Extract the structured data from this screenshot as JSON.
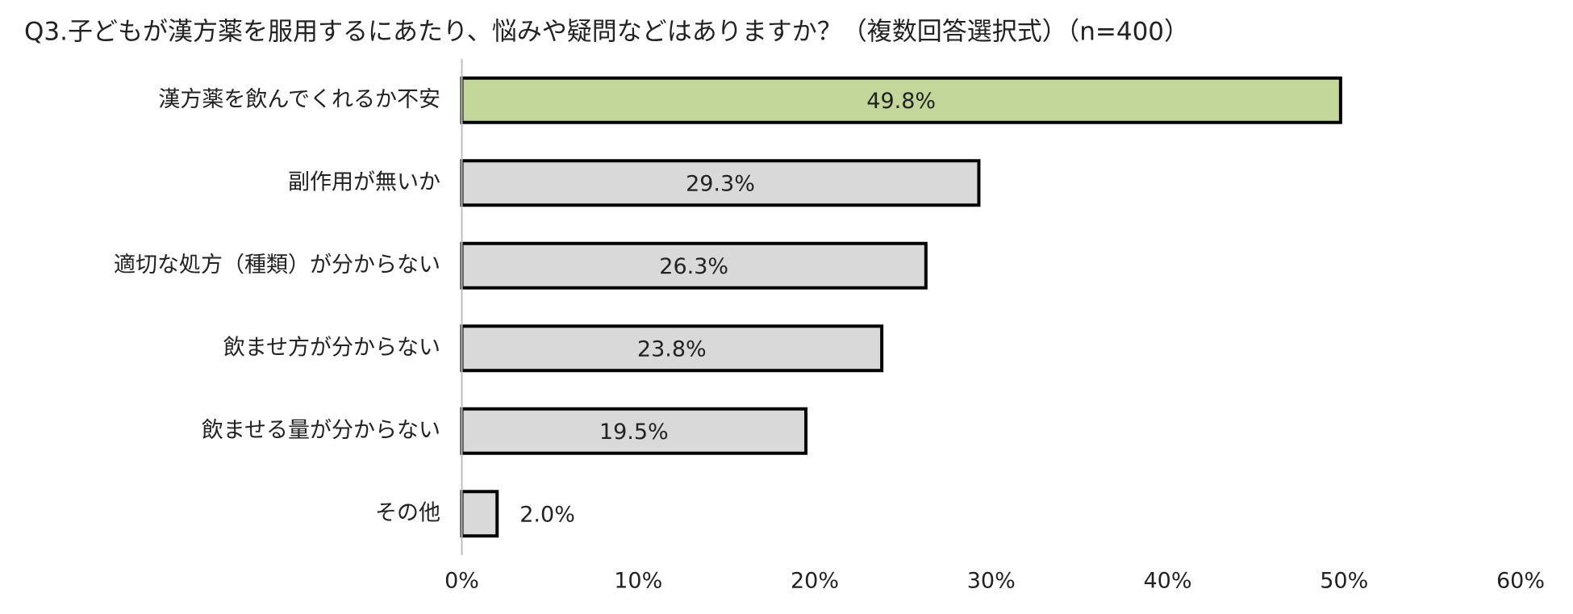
{
  "chart_data": {
    "type": "hbar",
    "title": "Q3.子どもが漢方薬を服用するにあたり、悩みや疑問などはありますか？（複数回答選択式）（n=400）",
    "categories": [
      "漢方薬を飲んでくれるか不安",
      "副作用が無いか",
      "適切な処方（種類）が分からない",
      "飲ませ方が分からない",
      "飲ませる量が分からない",
      "その他"
    ],
    "values": [
      49.8,
      29.3,
      26.3,
      23.8,
      19.5,
      2.0
    ],
    "value_labels": [
      "49.8%",
      "29.3%",
      "26.3%",
      "23.8%",
      "19.5%",
      "2.0%"
    ],
    "colors": [
      "#c4d79b",
      "#d9d9d9",
      "#d9d9d9",
      "#d9d9d9",
      "#d9d9d9",
      "#d9d9d9"
    ],
    "xlim": [
      0,
      60
    ],
    "xticks": [
      {
        "value": 0,
        "label": "0%"
      },
      {
        "value": 10,
        "label": "10%"
      },
      {
        "value": 20,
        "label": "20%"
      },
      {
        "value": 30,
        "label": "30%"
      },
      {
        "value": 40,
        "label": "40%"
      },
      {
        "value": 50,
        "label": "50%"
      },
      {
        "value": 60,
        "label": "60%"
      }
    ],
    "grid": false
  }
}
